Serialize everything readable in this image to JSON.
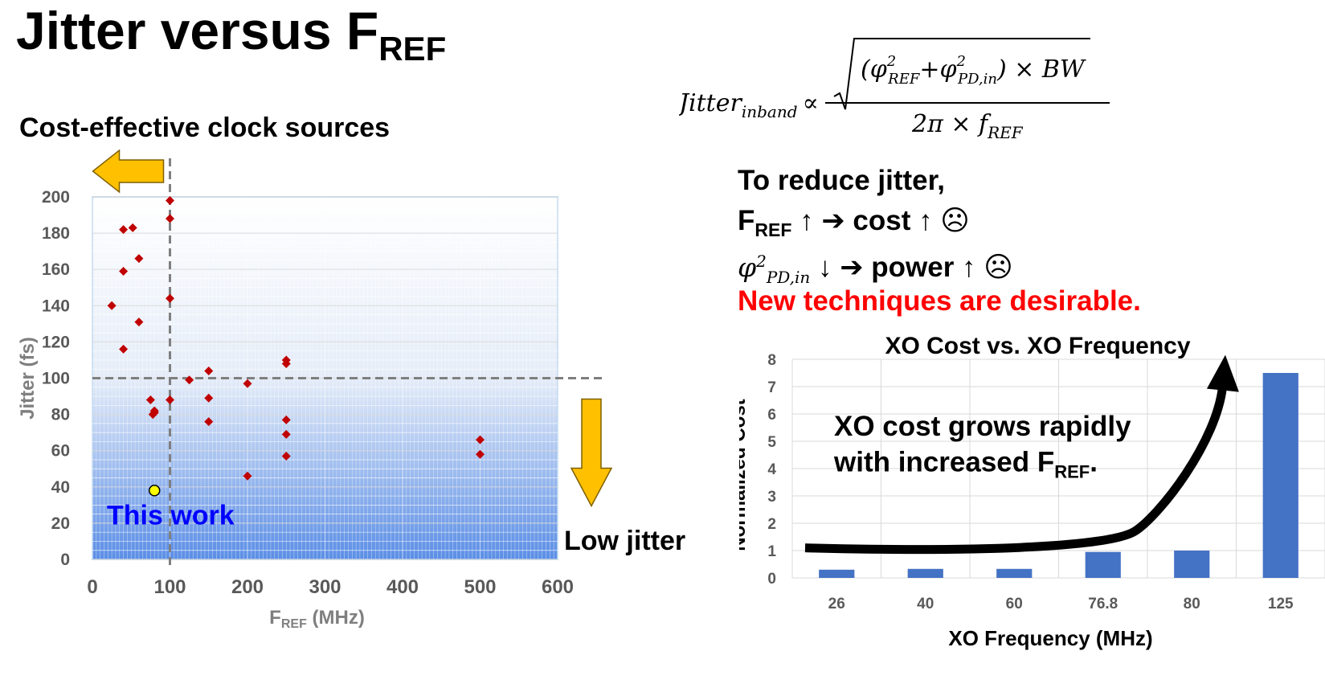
{
  "slide": {
    "title_main": "Jitter versus F",
    "title_sub": "REF",
    "cost_heading": "Cost-effective clock sources"
  },
  "formula": {
    "lhs": "Jitter",
    "lhs_sub": "inband",
    "prop": "∝",
    "num_open": "(φ",
    "ref_sub": "REF",
    "plus": "+φ",
    "pd_sub": "PD,in",
    "num_close": ") × BW",
    "sq": "2",
    "den": "2π × f",
    "den_sub": "REF"
  },
  "bullets": {
    "line1": "To reduce jitter,",
    "line2_a": "F",
    "line2_sub": "REF",
    "line2_b": " ↑  ➔  cost ↑  ☹",
    "line3_greek": "φ",
    "line3_sup": "2",
    "line3_sub": "PD,in",
    "line3_b": " ↓  ➔  power ↑ ☹",
    "line4": "New techniques are desirable."
  },
  "colors": {
    "marker_red": "#c00000",
    "this_work_fill": "#ffff00",
    "arrow_fill": "#ffc000",
    "bar_blue": "#4472c4",
    "this_work_text": "#0000ff",
    "gradient_bottom": "#5b8ee6",
    "red_text": "#ff0000"
  },
  "chart_data": [
    {
      "type": "scatter",
      "xlabel_main": "F",
      "xlabel_sub": "REF",
      "xlabel_rest": " (MHz)",
      "ylabel": "Jitter  (fs)",
      "xlim": [
        0,
        600
      ],
      "ylim": [
        0,
        200
      ],
      "x_ticks": [
        0,
        100,
        200,
        300,
        400,
        500,
        600
      ],
      "y_ticks": [
        0,
        20,
        40,
        60,
        80,
        100,
        120,
        140,
        160,
        180,
        200
      ],
      "grid": true,
      "reference_lines": {
        "x": 100,
        "y": 100
      },
      "series": [
        {
          "x": [
            25,
            40,
            40,
            40,
            52,
            60,
            60,
            75,
            78,
            80,
            80,
            100,
            100,
            100,
            100,
            125,
            150,
            150,
            150,
            200,
            200,
            250,
            250,
            250,
            250,
            250,
            500,
            500
          ],
          "y": [
            140,
            182,
            159,
            116,
            183,
            166,
            131,
            88,
            80,
            81,
            82,
            198,
            188,
            144,
            88,
            99,
            104,
            89,
            76,
            97,
            46,
            110,
            108,
            77,
            69,
            57,
            66,
            58
          ]
        },
        {
          "name": "This work",
          "x": [
            80
          ],
          "y": [
            38
          ]
        }
      ],
      "annotations": {
        "this_work": "This work",
        "low_jitter": "Low jitter"
      }
    },
    {
      "type": "bar",
      "title": "XO Cost vs. XO Frequency",
      "xlabel": "XO Frequency (MHz)",
      "ylabel": "Normalized Cost",
      "categories": [
        "26",
        "40",
        "60",
        "76.8",
        "80",
        "125"
      ],
      "values": [
        0.3,
        0.33,
        0.33,
        0.95,
        1.0,
        7.5
      ],
      "ylim": [
        0,
        8
      ],
      "y_ticks": [
        0,
        1,
        2,
        3,
        4,
        5,
        6,
        7,
        8
      ],
      "grid": true,
      "annotation_line1": "XO cost grows rapidly",
      "annotation_line2_a": "with increased F",
      "annotation_line2_sub": "REF",
      "annotation_line2_b": "."
    }
  ]
}
